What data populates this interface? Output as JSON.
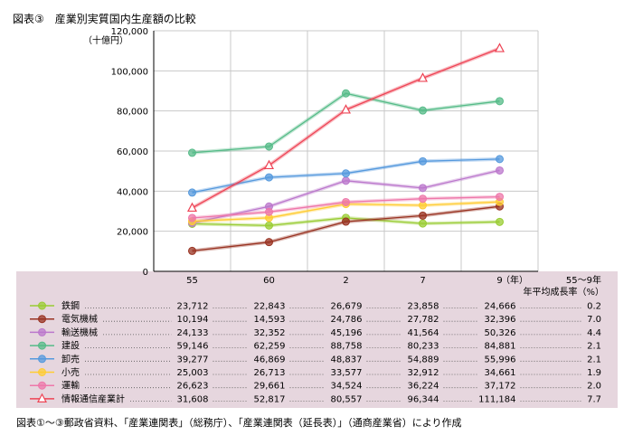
{
  "figure_title": "図表③　産業別実質国内生産額の比較",
  "source_note": "図表①～③郵政省資料、「産業連関表」（総務庁）、「産業連関表（延長表）」（通商産業省）により作成",
  "chart_data": {
    "type": "line",
    "title": "図表③　産業別実質国内生産額の比較",
    "ylabel": "（十億円）",
    "xlabel": "（年）",
    "categories": [
      "55",
      "60",
      "2",
      "7",
      "9"
    ],
    "ylim": [
      0,
      120000
    ],
    "yticks": [
      "0",
      "20,000",
      "40,000",
      "60,000",
      "80,000",
      "100,000",
      "120,000"
    ],
    "ytick_values": [
      0,
      20000,
      40000,
      60000,
      80000,
      100000,
      120000
    ],
    "grid": true,
    "legend": "table-below",
    "growth_header_line1": "55～9年",
    "growth_header_line2": "年平均成長率（%）",
    "series": [
      {
        "name": "鉄鋼",
        "color": "#99cc33",
        "marker": "circle",
        "values": [
          23712,
          22843,
          26679,
          23858,
          24666
        ],
        "labels": [
          "23,712",
          "22,843",
          "26,679",
          "23,858",
          "24,666"
        ],
        "growth": "0.2"
      },
      {
        "name": "電気機械",
        "color": "#993322",
        "marker": "circle",
        "values": [
          10194,
          14593,
          24786,
          27782,
          32396
        ],
        "labels": [
          "10,194",
          "14,593",
          "24,786",
          "27,782",
          "32,396"
        ],
        "growth": "7.0"
      },
      {
        "name": "輸送機械",
        "color": "#bb77cc",
        "marker": "circle",
        "values": [
          24133,
          32352,
          45196,
          41564,
          50326
        ],
        "labels": [
          "24,133",
          "32,352",
          "45,196",
          "41,564",
          "50,326"
        ],
        "growth": "4.4"
      },
      {
        "name": "建設",
        "color": "#55bb88",
        "marker": "circle",
        "values": [
          59146,
          62259,
          88758,
          80233,
          84881
        ],
        "labels": [
          "59,146",
          "62,259",
          "88,758",
          "80,233",
          "84,881"
        ],
        "growth": "2.1"
      },
      {
        "name": "卸売",
        "color": "#5599dd",
        "marker": "circle",
        "values": [
          39277,
          46869,
          48837,
          54889,
          55996
        ],
        "labels": [
          "39,277",
          "46,869",
          "48,837",
          "54,889",
          "55,996"
        ],
        "growth": "2.1"
      },
      {
        "name": "小売",
        "color": "#ffcc33",
        "marker": "circle",
        "values": [
          25003,
          26713,
          33577,
          32912,
          34661
        ],
        "labels": [
          "25,003",
          "26,713",
          "33,577",
          "32,912",
          "34,661"
        ],
        "growth": "1.9"
      },
      {
        "name": "運輸",
        "color": "#ee77aa",
        "marker": "circle",
        "values": [
          26623,
          29661,
          34524,
          36224,
          37172
        ],
        "labels": [
          "26,623",
          "29,661",
          "34,524",
          "36,224",
          "37,172"
        ],
        "growth": "2.0"
      },
      {
        "name": "情報通信産業計",
        "color": "#ee4455",
        "marker": "triangle",
        "values": [
          31608,
          52817,
          80557,
          96344,
          111184
        ],
        "labels": [
          "31,608",
          "52,817",
          "80,557",
          "96,344",
          "111,184"
        ],
        "growth": "7.7"
      }
    ]
  }
}
